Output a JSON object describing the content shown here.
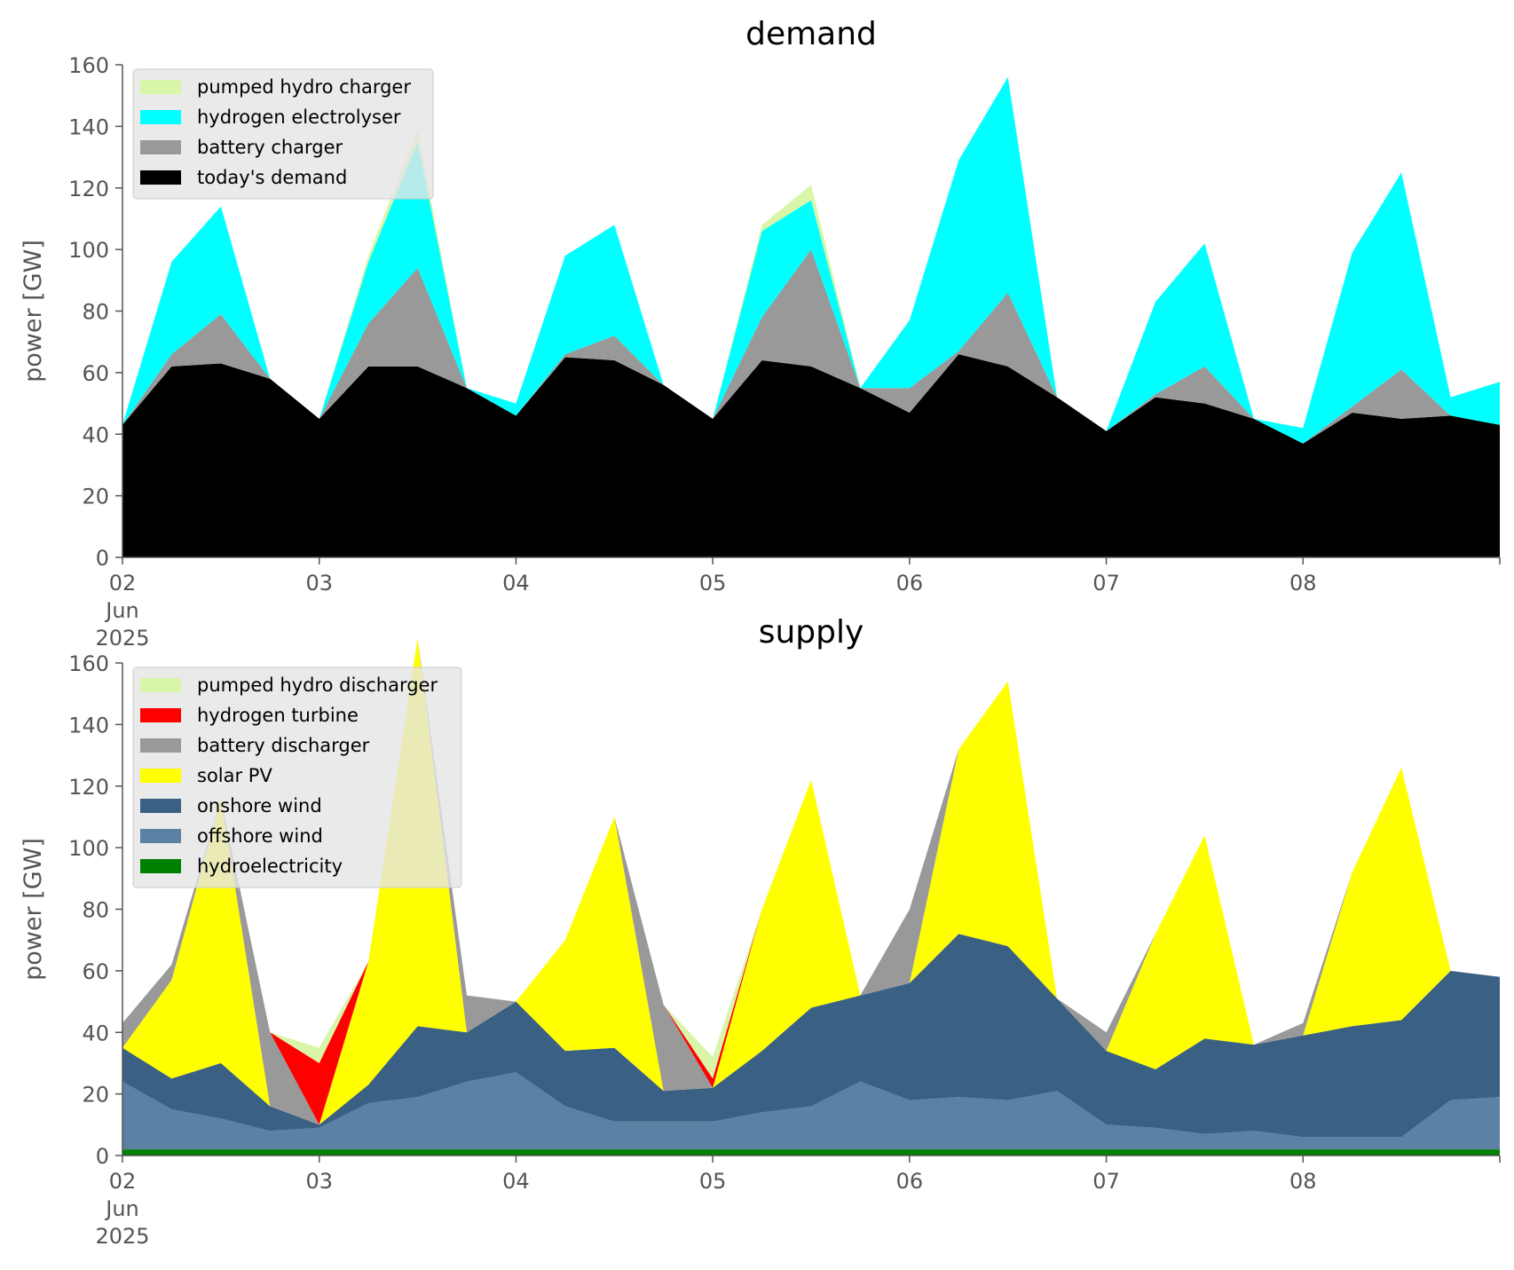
{
  "chart_data": [
    {
      "type": "area",
      "stacked": true,
      "title": "demand",
      "ylabel": "power [GW]",
      "ylim": [
        0,
        160
      ],
      "yticks": [
        0,
        20,
        40,
        60,
        80,
        100,
        120,
        140,
        160
      ],
      "xlim": [
        0,
        7
      ],
      "xticks": [
        {
          "x": 0,
          "lines": [
            "02",
            "Jun",
            "2025"
          ]
        },
        {
          "x": 1,
          "lines": [
            "03"
          ]
        },
        {
          "x": 2,
          "lines": [
            "04"
          ]
        },
        {
          "x": 3,
          "lines": [
            "05"
          ]
        },
        {
          "x": 4,
          "lines": [
            "06"
          ]
        },
        {
          "x": 5,
          "lines": [
            "07"
          ]
        },
        {
          "x": 6,
          "lines": [
            "08"
          ]
        }
      ],
      "legend_position": "upper-left",
      "grid": false,
      "x": [
        0.0,
        0.25,
        0.5,
        0.75,
        1.0,
        1.25,
        1.5,
        1.75,
        2.0,
        2.25,
        2.5,
        2.75,
        3.0,
        3.25,
        3.5,
        3.75,
        4.0,
        4.25,
        4.5,
        4.75,
        5.0,
        5.25,
        5.5,
        5.75,
        6.0,
        6.25,
        6.5,
        6.75,
        7.0
      ],
      "series": [
        {
          "name": "today's demand",
          "color": "#000000",
          "values": [
            43,
            62,
            63,
            58,
            45,
            62,
            62,
            55,
            46,
            65,
            64,
            56,
            45,
            64,
            62,
            55,
            47,
            66,
            62,
            52,
            41,
            52,
            50,
            45,
            37,
            47,
            45,
            46,
            43
          ]
        },
        {
          "name": "battery charger",
          "color": "#999999",
          "values": [
            0,
            4,
            16,
            0,
            0,
            14,
            32,
            0,
            0,
            1,
            8,
            0,
            0,
            14,
            38,
            0,
            8,
            1,
            24,
            0,
            0,
            1,
            12,
            0,
            0,
            2,
            16,
            0,
            0
          ]
        },
        {
          "name": "hydrogen electrolyser",
          "color": "#00ffff",
          "values": [
            0,
            30,
            35,
            0,
            0,
            20,
            41,
            0,
            4,
            32,
            36,
            0,
            0,
            28,
            16,
            0,
            22,
            62,
            70,
            0,
            0,
            30,
            40,
            0,
            5,
            50,
            64,
            6,
            14
          ]
        },
        {
          "name": "pumped hydro charger",
          "color": "#d9f5a8",
          "values": [
            0,
            0,
            0,
            0,
            0,
            2,
            4,
            0,
            0,
            0,
            0,
            0,
            0,
            2,
            5,
            0,
            0,
            0,
            0,
            0,
            0,
            0,
            0,
            0,
            0,
            0,
            0,
            0,
            0
          ]
        }
      ]
    },
    {
      "type": "area",
      "stacked": true,
      "title": "supply",
      "ylabel": "power [GW]",
      "ylim": [
        0,
        160
      ],
      "yticks": [
        0,
        20,
        40,
        60,
        80,
        100,
        120,
        140,
        160
      ],
      "xlim": [
        0,
        7
      ],
      "xticks": [
        {
          "x": 0,
          "lines": [
            "02",
            "Jun",
            "2025"
          ]
        },
        {
          "x": 1,
          "lines": [
            "03"
          ]
        },
        {
          "x": 2,
          "lines": [
            "04"
          ]
        },
        {
          "x": 3,
          "lines": [
            "05"
          ]
        },
        {
          "x": 4,
          "lines": [
            "06"
          ]
        },
        {
          "x": 5,
          "lines": [
            "07"
          ]
        },
        {
          "x": 6,
          "lines": [
            "08"
          ]
        }
      ],
      "legend_position": "upper-left",
      "grid": false,
      "x": [
        0.0,
        0.25,
        0.5,
        0.75,
        1.0,
        1.25,
        1.5,
        1.75,
        2.0,
        2.25,
        2.5,
        2.75,
        3.0,
        3.25,
        3.5,
        3.75,
        4.0,
        4.25,
        4.5,
        4.75,
        5.0,
        5.25,
        5.5,
        5.75,
        6.0,
        6.25,
        6.5,
        6.75,
        7.0
      ],
      "series": [
        {
          "name": "hydroelectricity",
          "color": "#008000",
          "values": [
            2,
            2,
            2,
            2,
            2,
            2,
            2,
            2,
            2,
            2,
            2,
            2,
            2,
            2,
            2,
            2,
            2,
            2,
            2,
            2,
            2,
            2,
            2,
            2,
            2,
            2,
            2,
            2,
            2
          ]
        },
        {
          "name": "offshore wind",
          "color": "#5b81a4",
          "values": [
            22,
            13,
            10,
            6,
            7,
            15,
            17,
            22,
            25,
            14,
            9,
            9,
            9,
            12,
            14,
            22,
            16,
            17,
            16,
            19,
            8,
            7,
            5,
            6,
            4,
            4,
            4,
            16,
            17
          ]
        },
        {
          "name": "onshore wind",
          "color": "#3a6083",
          "values": [
            11,
            10,
            18,
            8,
            1,
            6,
            23,
            16,
            23,
            18,
            24,
            10,
            11,
            20,
            32,
            28,
            38,
            53,
            50,
            30,
            24,
            19,
            31,
            28,
            33,
            36,
            38,
            42,
            39
          ]
        },
        {
          "name": "solar PV",
          "color": "#ffff00",
          "values": [
            0,
            32,
            86,
            0,
            0,
            40,
            126,
            0,
            0,
            36,
            75,
            0,
            0,
            46,
            74,
            0,
            0,
            60,
            86,
            0,
            0,
            44,
            66,
            0,
            0,
            50,
            82,
            0,
            0
          ]
        },
        {
          "name": "battery discharger",
          "color": "#999999",
          "values": [
            8,
            5,
            0,
            24,
            0,
            0,
            0,
            12,
            0,
            0,
            0,
            28,
            0,
            0,
            0,
            0,
            24,
            0,
            0,
            0,
            6,
            0,
            0,
            0,
            4,
            0,
            0,
            0,
            0
          ]
        },
        {
          "name": "hydrogen turbine",
          "color": "#ff0000",
          "values": [
            0,
            0,
            0,
            0,
            20,
            0,
            0,
            0,
            0,
            0,
            0,
            0,
            3,
            0,
            0,
            0,
            0,
            0,
            0,
            0,
            0,
            0,
            0,
            0,
            0,
            0,
            0,
            0,
            0
          ]
        },
        {
          "name": "pumped hydro discharger",
          "color": "#d9f5a8",
          "values": [
            0,
            0,
            0,
            0,
            5,
            0,
            0,
            0,
            0,
            0,
            0,
            0,
            7,
            0,
            0,
            0,
            0,
            0,
            0,
            0,
            0,
            0,
            0,
            0,
            0,
            0,
            0,
            0,
            0
          ]
        }
      ]
    }
  ]
}
